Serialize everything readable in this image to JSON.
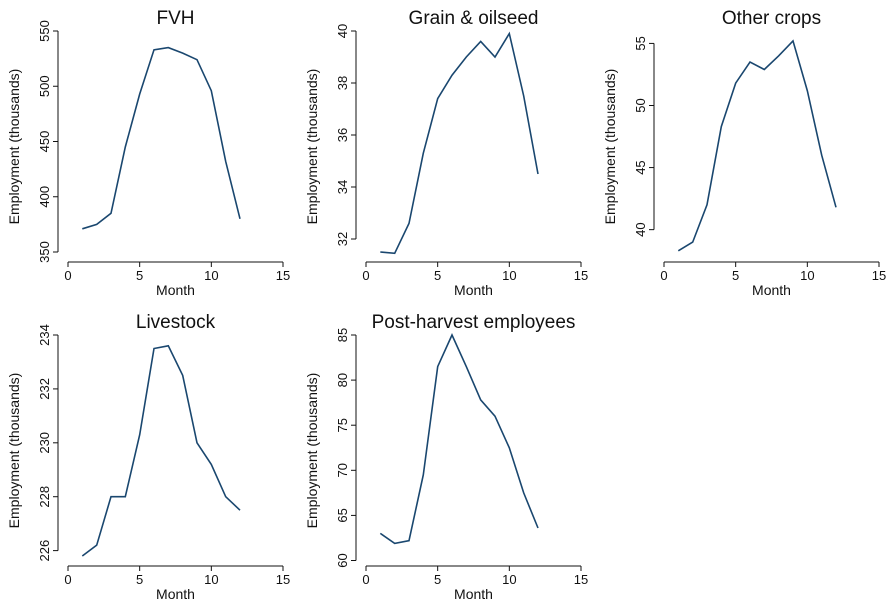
{
  "chart_data": [
    {
      "type": "line",
      "title": "FVH",
      "xlabel": "Month",
      "ylabel": "Employment (thousands)",
      "xlim": [
        0,
        15
      ],
      "ylim": [
        350,
        550
      ],
      "xticks": [
        0,
        5,
        10,
        15
      ],
      "yticks": [
        350,
        400,
        450,
        500,
        550
      ],
      "x": [
        1,
        2,
        3,
        4,
        5,
        6,
        7,
        8,
        9,
        10,
        11,
        12
      ],
      "values": [
        371,
        375,
        385,
        445,
        493,
        533,
        535,
        530,
        524,
        496,
        432,
        380
      ],
      "grid": false
    },
    {
      "type": "line",
      "title": "Grain & oilseed",
      "xlabel": "Month",
      "ylabel": "Employment (thousands)",
      "xlim": [
        0,
        15
      ],
      "ylim": [
        31.5,
        40
      ],
      "xticks": [
        0,
        5,
        10,
        15
      ],
      "yticks": [
        32,
        34,
        36,
        38,
        40
      ],
      "x": [
        1,
        2,
        3,
        4,
        5,
        6,
        7,
        8,
        9,
        10,
        11,
        12
      ],
      "values": [
        31.5,
        31.45,
        32.6,
        35.3,
        37.4,
        38.3,
        39.0,
        39.6,
        39.0,
        39.9,
        37.5,
        34.5
      ],
      "grid": false
    },
    {
      "type": "line",
      "title": "Other crops",
      "xlabel": "Month",
      "ylabel": "Employment (thousands)",
      "xlim": [
        0,
        15
      ],
      "ylim": [
        38.2,
        56
      ],
      "xticks": [
        0,
        5,
        10,
        15
      ],
      "yticks": [
        40,
        45,
        50,
        55
      ],
      "x": [
        1,
        2,
        3,
        4,
        5,
        6,
        7,
        8,
        9,
        10,
        11,
        12
      ],
      "values": [
        38.3,
        39.0,
        42.0,
        48.3,
        51.8,
        53.5,
        52.9,
        54.0,
        55.2,
        51.2,
        46.0,
        41.8
      ],
      "grid": false
    },
    {
      "type": "line",
      "title": "Livestock",
      "xlabel": "Month",
      "ylabel": "Employment (thousands)",
      "xlim": [
        0,
        15
      ],
      "ylim": [
        225.8,
        234
      ],
      "xticks": [
        0,
        5,
        10,
        15
      ],
      "yticks": [
        226,
        228,
        230,
        232,
        234
      ],
      "x": [
        1,
        2,
        3,
        4,
        5,
        6,
        7,
        8,
        9,
        10,
        11,
        12
      ],
      "values": [
        225.8,
        226.2,
        228.0,
        228.0,
        230.3,
        233.5,
        233.6,
        232.5,
        230.0,
        229.2,
        228.0,
        227.5
      ],
      "grid": false
    },
    {
      "type": "line",
      "title": "Post-harvest employees",
      "xlabel": "Month",
      "ylabel": "Employment (thousands)",
      "xlim": [
        0,
        15
      ],
      "ylim": [
        60.5,
        85
      ],
      "xticks": [
        0,
        5,
        10,
        15
      ],
      "yticks": [
        60,
        65,
        70,
        75,
        80,
        85
      ],
      "x": [
        1,
        2,
        3,
        4,
        5,
        6,
        7,
        8,
        9,
        10,
        11,
        12
      ],
      "values": [
        63.0,
        61.9,
        62.2,
        69.5,
        81.5,
        85.0,
        81.5,
        77.8,
        76.0,
        72.5,
        67.5,
        63.6
      ],
      "grid": false
    }
  ]
}
